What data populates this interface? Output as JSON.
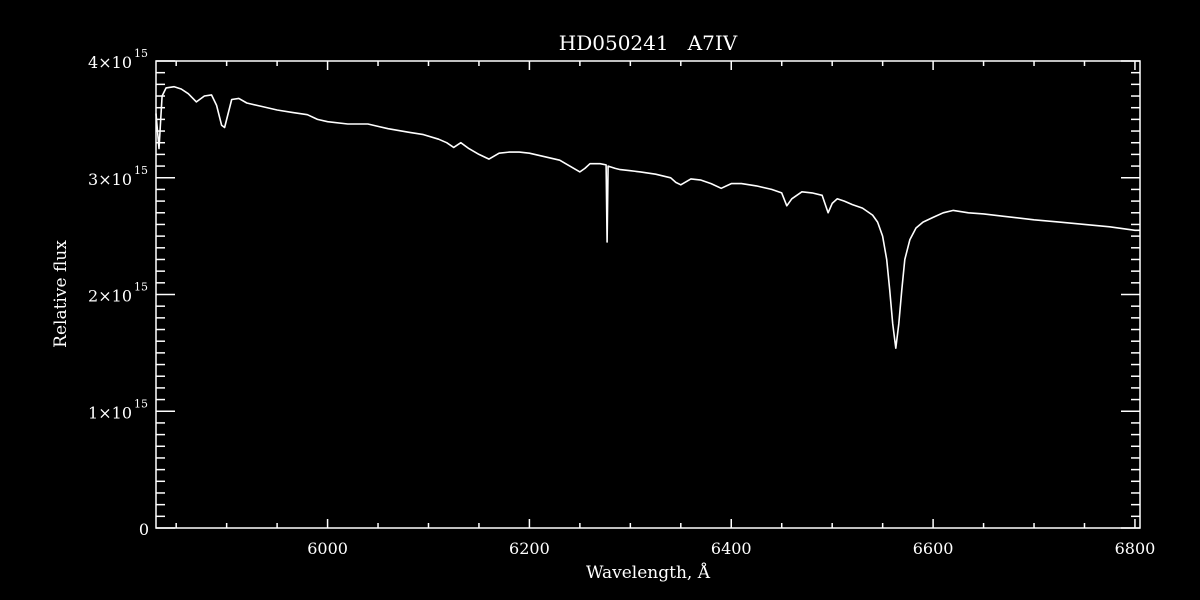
{
  "chart_data": {
    "type": "line",
    "title": "HD050241   A7IV",
    "xlabel": "Wavelength, Å",
    "ylabel": "Relative flux",
    "xlim": [
      5830,
      6805
    ],
    "ylim": [
      0,
      4
    ],
    "y_scale_label": "×10^15",
    "x_ticks": [
      6000,
      6200,
      6400,
      6600,
      6800
    ],
    "x_minor_step": 50,
    "y_ticks": [
      {
        "value": 0,
        "label": "0"
      },
      {
        "value": 1,
        "label": "1×10",
        "exp": "15"
      },
      {
        "value": 2,
        "label": "2×10",
        "exp": "15"
      },
      {
        "value": 3,
        "label": "3×10",
        "exp": "15"
      },
      {
        "value": 4,
        "label": "4×10",
        "exp": "15"
      }
    ],
    "y_minor_step": 0.1,
    "grid": false,
    "colors": {
      "background": "#000000",
      "line": "#ffffff",
      "axes": "#ffffff"
    },
    "series": [
      {
        "x": [
          5830,
          5833,
          5836,
          5840,
          5848,
          5855,
          5862,
          5870,
          5878,
          5885,
          5890,
          5895,
          5898,
          5905,
          5912,
          5920,
          5935,
          5950,
          5965,
          5980,
          5990,
          6000,
          6020,
          6040,
          6060,
          6080,
          6095,
          6110,
          6118,
          6125,
          6132,
          6140,
          6150,
          6160,
          6170,
          6180,
          6190,
          6200,
          6215,
          6230,
          6240,
          6250,
          6255,
          6260,
          6270,
          6276,
          6277,
          6278,
          6285,
          6290,
          6300,
          6310,
          6325,
          6340,
          6345,
          6350,
          6360,
          6370,
          6380,
          6390,
          6400,
          6410,
          6425,
          6440,
          6450,
          6455,
          6460,
          6470,
          6480,
          6490,
          6496,
          6500,
          6505,
          6512,
          6520,
          6530,
          6540,
          6545,
          6550,
          6554,
          6557,
          6560,
          6563,
          6566,
          6569,
          6572,
          6577,
          6583,
          6590,
          6600,
          6610,
          6620,
          6635,
          6650,
          6670,
          6700,
          6725,
          6750,
          6775,
          6800,
          6805
        ],
        "y": [
          3.55,
          3.25,
          3.7,
          3.77,
          3.78,
          3.76,
          3.72,
          3.65,
          3.7,
          3.71,
          3.62,
          3.45,
          3.43,
          3.67,
          3.68,
          3.64,
          3.61,
          3.58,
          3.56,
          3.54,
          3.5,
          3.48,
          3.46,
          3.46,
          3.42,
          3.39,
          3.37,
          3.33,
          3.3,
          3.26,
          3.3,
          3.25,
          3.2,
          3.16,
          3.21,
          3.22,
          3.22,
          3.21,
          3.18,
          3.15,
          3.1,
          3.05,
          3.08,
          3.12,
          3.12,
          3.11,
          2.45,
          3.1,
          3.08,
          3.07,
          3.06,
          3.05,
          3.03,
          3.0,
          2.96,
          2.94,
          2.99,
          2.98,
          2.95,
          2.91,
          2.95,
          2.95,
          2.93,
          2.9,
          2.87,
          2.76,
          2.82,
          2.88,
          2.87,
          2.85,
          2.7,
          2.78,
          2.82,
          2.8,
          2.77,
          2.74,
          2.68,
          2.62,
          2.5,
          2.3,
          2.04,
          1.75,
          1.54,
          1.75,
          2.04,
          2.3,
          2.47,
          2.57,
          2.62,
          2.66,
          2.7,
          2.72,
          2.7,
          2.69,
          2.67,
          2.64,
          2.62,
          2.6,
          2.58,
          2.55,
          2.55
        ]
      }
    ]
  }
}
